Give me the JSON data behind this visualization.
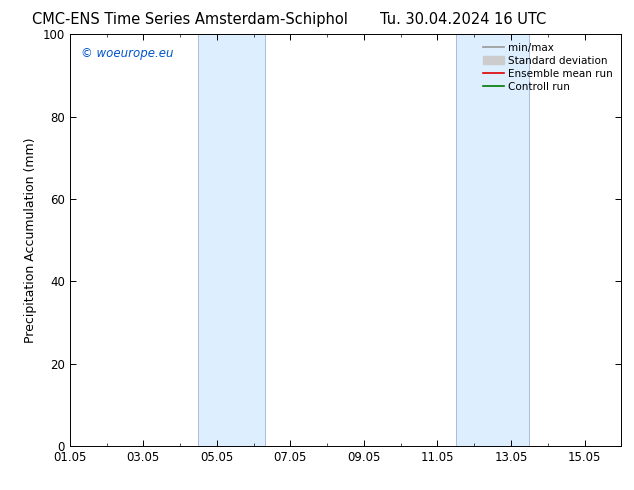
{
  "title_left": "CMC-ENS Time Series Amsterdam-Schiphol",
  "title_right": "Tu. 30.04.2024 16 UTC",
  "ylabel": "Precipitation Accumulation (mm)",
  "ylim": [
    0,
    100
  ],
  "xlim": [
    0.0,
    15.0
  ],
  "xtick_labels": [
    "01.05",
    "03.05",
    "05.05",
    "07.05",
    "09.05",
    "11.05",
    "13.05",
    "15.05"
  ],
  "xtick_positions": [
    0,
    2,
    4,
    6,
    8,
    10,
    12,
    14
  ],
  "ytick_positions": [
    0,
    20,
    40,
    60,
    80,
    100
  ],
  "shaded_bands": [
    {
      "xmin": 3.5,
      "xmax": 5.3
    },
    {
      "xmin": 10.5,
      "xmax": 12.5
    }
  ],
  "band_color": "#ddeeff",
  "band_edge_color": "#aabbdd",
  "background_color": "#ffffff",
  "watermark": "© woeurope.eu",
  "watermark_color": "#0055cc",
  "legend_entries": [
    {
      "label": "min/max",
      "color": "#999999",
      "lw": 1.2,
      "type": "line"
    },
    {
      "label": "Standard deviation",
      "color": "#cccccc",
      "lw": 5,
      "type": "patch"
    },
    {
      "label": "Ensemble mean run",
      "color": "#dd0000",
      "lw": 1.2,
      "type": "line"
    },
    {
      "label": "Controll run",
      "color": "#007700",
      "lw": 1.2,
      "type": "line"
    }
  ],
  "title_fontsize": 10.5,
  "axis_label_fontsize": 9,
  "tick_fontsize": 8.5,
  "legend_fontsize": 7.5,
  "watermark_fontsize": 8.5
}
